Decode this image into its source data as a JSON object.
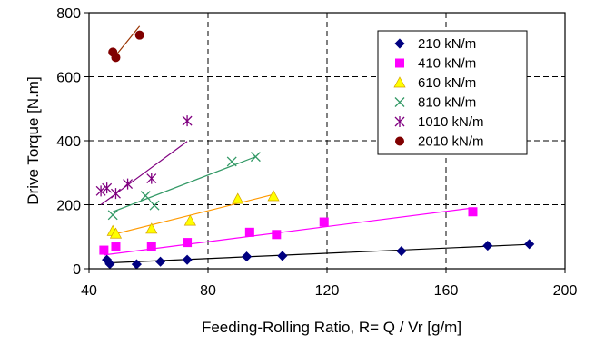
{
  "chart_data": {
    "type": "scatter",
    "title": "",
    "xlabel": "Feeding-Rolling Ratio, R= Q / Vr [g/m]",
    "ylabel": "Drive Torque [N.m]",
    "xlim": [
      40,
      200
    ],
    "ylim": [
      0,
      800
    ],
    "xticks": [
      "40",
      "80",
      "120",
      "160",
      "200"
    ],
    "yticks": [
      "0",
      "200",
      "400",
      "600",
      "800"
    ],
    "grid": "dashed",
    "legend": "top-right",
    "trendlines": true,
    "series": [
      {
        "name": "210 kN/m",
        "marker": "diamond",
        "color": "#000080",
        "line_color": "#000000",
        "points": [
          [
            46,
            28
          ],
          [
            47,
            15
          ],
          [
            56,
            14
          ],
          [
            64,
            22
          ],
          [
            73,
            28
          ],
          [
            93,
            38
          ],
          [
            105,
            40
          ],
          [
            145,
            55
          ],
          [
            174,
            72
          ],
          [
            188,
            77
          ]
        ],
        "fit": [
          [
            46,
            18
          ],
          [
            188,
            76
          ]
        ]
      },
      {
        "name": "410 kN/m",
        "marker": "square",
        "color": "#ff00ff",
        "line_color": "#ff00ff",
        "points": [
          [
            45,
            58
          ],
          [
            49,
            68
          ],
          [
            61,
            70
          ],
          [
            73,
            82
          ],
          [
            94,
            114
          ],
          [
            103,
            107
          ],
          [
            119,
            146
          ],
          [
            169,
            178
          ]
        ],
        "fit": [
          [
            45,
            43
          ],
          [
            169,
            190
          ]
        ]
      },
      {
        "name": "610 kN/m",
        "marker": "triangle",
        "color": "#ffff00",
        "line_color": "#ff9900",
        "points": [
          [
            48,
            118
          ],
          [
            49,
            110
          ],
          [
            61,
            125
          ],
          [
            74,
            150
          ],
          [
            90,
            218
          ],
          [
            102,
            227
          ]
        ],
        "fit": [
          [
            48,
            107
          ],
          [
            102,
            232
          ]
        ]
      },
      {
        "name": "810 kN/m",
        "marker": "x",
        "color": "#339966",
        "line_color": "#339966",
        "points": [
          [
            48,
            168
          ],
          [
            59,
            228
          ],
          [
            62,
            198
          ],
          [
            88,
            335
          ],
          [
            96,
            350
          ]
        ],
        "fit": [
          [
            48,
            178
          ],
          [
            96,
            350
          ]
        ]
      },
      {
        "name": "1010 kN/m",
        "marker": "star",
        "color": "#800080",
        "line_color": "#800080",
        "points": [
          [
            44,
            243
          ],
          [
            46,
            252
          ],
          [
            49,
            235
          ],
          [
            53,
            265
          ],
          [
            61,
            282
          ],
          [
            73,
            462
          ]
        ],
        "fit": [
          [
            44,
            200
          ],
          [
            73,
            398
          ]
        ]
      },
      {
        "name": "2010 kN/m",
        "marker": "circle",
        "color": "#800000",
        "line_color": "#993300",
        "points": [
          [
            48,
            677
          ],
          [
            49,
            660
          ],
          [
            57,
            730
          ]
        ],
        "fit": [
          [
            48,
            655
          ],
          [
            57,
            758
          ]
        ]
      }
    ]
  }
}
